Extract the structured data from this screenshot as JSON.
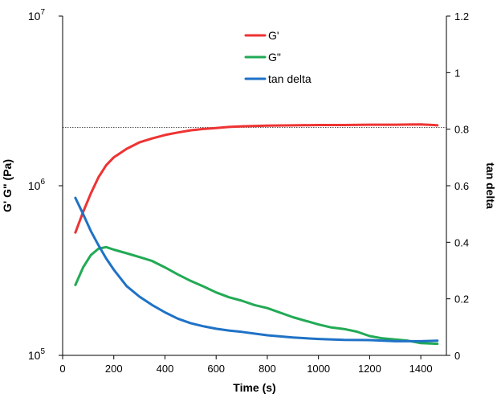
{
  "chart_data": {
    "type": "line",
    "title": "",
    "xlabel": "Time (s)",
    "ylabel_left": "G' G\" (Pa)",
    "ylabel_right": "tan delta",
    "xlim": [
      0,
      1500
    ],
    "x_ticks": [
      0,
      200,
      400,
      600,
      800,
      1000,
      1200,
      1400
    ],
    "x_tick_labels": [
      "0",
      "200",
      "400",
      "600",
      "800",
      "1000",
      "1200",
      "1400"
    ],
    "y_left_scale": "log",
    "y_left_lim": [
      100000,
      10000000
    ],
    "y_left_ticks": [
      {
        "value": 100000,
        "base": "10",
        "exp": "5"
      },
      {
        "value": 1000000,
        "base": "10",
        "exp": "6"
      },
      {
        "value": 10000000,
        "base": "10",
        "exp": "7"
      }
    ],
    "y_right_lim": [
      0,
      1.2
    ],
    "y_right_ticks": [
      0,
      0.2,
      0.4,
      0.6,
      0.8,
      1,
      1.2
    ],
    "y_right_tick_labels": [
      "0",
      "0.2",
      "0.4",
      "0.6",
      "0.8",
      "1",
      "1.2"
    ],
    "grid": false,
    "legend_position": "top-center",
    "reference_line": {
      "axis": "right",
      "value": 0.806,
      "style": "dotted",
      "color": "#555555"
    },
    "series": [
      {
        "name": "G'",
        "axis": "left",
        "color": "#ee3333",
        "x": [
          50,
          80,
          110,
          140,
          170,
          200,
          250,
          300,
          350,
          400,
          450,
          500,
          550,
          600,
          650,
          700,
          800,
          900,
          1000,
          1100,
          1200,
          1300,
          1400,
          1450,
          1465
        ],
        "y": [
          530000,
          700000,
          900000,
          1120000,
          1320000,
          1470000,
          1650000,
          1800000,
          1900000,
          1990000,
          2060000,
          2120000,
          2160000,
          2190000,
          2220000,
          2240000,
          2260000,
          2270000,
          2280000,
          2280000,
          2290000,
          2290000,
          2300000,
          2280000,
          2270000
        ]
      },
      {
        "name": "G\"",
        "axis": "left",
        "color": "#22aa55",
        "x": [
          50,
          80,
          110,
          140,
          170,
          200,
          250,
          300,
          350,
          400,
          450,
          500,
          550,
          600,
          650,
          700,
          750,
          800,
          900,
          1000,
          1050,
          1100,
          1150,
          1200,
          1250,
          1300,
          1350,
          1400,
          1465
        ],
        "y": [
          260000,
          330000,
          390000,
          425000,
          435000,
          420000,
          400000,
          380000,
          360000,
          330000,
          300000,
          275000,
          255000,
          235000,
          220000,
          210000,
          198000,
          190000,
          168000,
          152000,
          146000,
          143000,
          138000,
          130000,
          126000,
          124000,
          122000,
          118000,
          117000
        ]
      },
      {
        "name": "tan delta",
        "axis": "right",
        "color": "#1f72c6",
        "x": [
          50,
          80,
          110,
          140,
          170,
          200,
          250,
          300,
          350,
          400,
          450,
          500,
          550,
          600,
          650,
          700,
          800,
          900,
          1000,
          1100,
          1200,
          1300,
          1400,
          1465
        ],
        "y": [
          0.557,
          0.5,
          0.44,
          0.39,
          0.343,
          0.303,
          0.245,
          0.208,
          0.178,
          0.152,
          0.13,
          0.114,
          0.103,
          0.094,
          0.088,
          0.083,
          0.071,
          0.063,
          0.058,
          0.055,
          0.054,
          0.05,
          0.05,
          0.052
        ]
      }
    ]
  }
}
